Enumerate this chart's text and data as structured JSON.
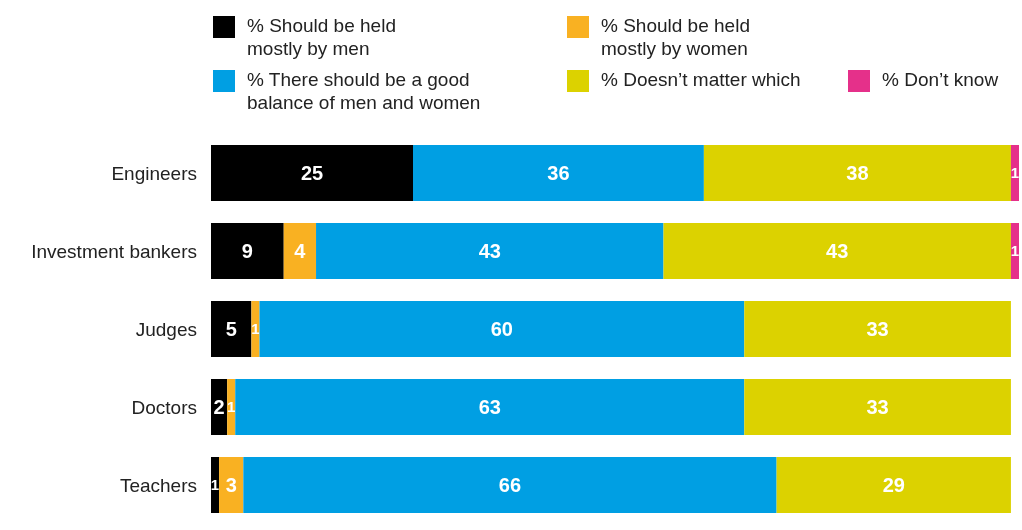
{
  "chart_data": {
    "type": "bar",
    "orientation": "horizontal",
    "stacked": true,
    "data_labels": true,
    "legend": "top",
    "tick_labels": "y",
    "categories": [
      "Engineers",
      "Investment bankers",
      "Judges",
      "Doctors",
      "Teachers"
    ],
    "series": [
      {
        "name": "% Should be held mostly by men",
        "color": "#000000",
        "values": [
          25,
          9,
          5,
          2,
          1
        ]
      },
      {
        "name": "% Should be held mostly by women",
        "color": "#f9b122",
        "values": [
          null,
          4,
          1,
          1,
          3
        ]
      },
      {
        "name": "% There should be a good balance of men and women",
        "color": "#009fe3",
        "values": [
          36,
          43,
          60,
          63,
          66
        ]
      },
      {
        "name": "% Doesn’t matter which",
        "color": "#dcd200",
        "values": [
          38,
          43,
          33,
          33,
          29
        ]
      },
      {
        "name": "% Don’t know",
        "color": "#e5308a",
        "values": [
          1,
          1,
          null,
          null,
          null
        ]
      }
    ]
  }
}
